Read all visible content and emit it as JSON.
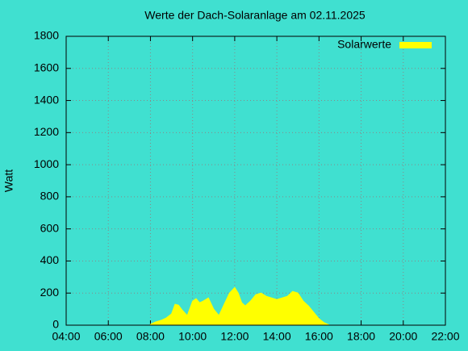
{
  "chart_data": {
    "type": "area",
    "title": "Werte der Dach-Solaranlage am 02.11.2025",
    "ylabel": "Watt",
    "x": [
      "08:00",
      "08:15",
      "08:30",
      "08:45",
      "09:00",
      "09:10",
      "09:20",
      "09:30",
      "09:45",
      "10:00",
      "10:10",
      "10:20",
      "10:30",
      "10:45",
      "11:00",
      "11:15",
      "11:30",
      "11:45",
      "12:00",
      "12:10",
      "12:20",
      "12:30",
      "12:45",
      "13:00",
      "13:15",
      "13:30",
      "13:45",
      "14:00",
      "14:15",
      "14:30",
      "14:45",
      "15:00",
      "15:15",
      "15:30",
      "15:45",
      "16:00",
      "16:15",
      "16:30"
    ],
    "series": [
      {
        "name": "Solarwerte",
        "color": "#ffff00",
        "values": [
          5,
          20,
          30,
          45,
          70,
          130,
          125,
          95,
          60,
          150,
          165,
          140,
          150,
          170,
          100,
          60,
          130,
          200,
          235,
          200,
          140,
          120,
          150,
          190,
          200,
          180,
          170,
          160,
          170,
          180,
          210,
          200,
          150,
          120,
          80,
          40,
          15,
          0
        ]
      }
    ],
    "xlim": [
      "04:00",
      "22:00"
    ],
    "xticks": [
      "04:00",
      "06:00",
      "08:00",
      "10:00",
      "12:00",
      "14:00",
      "16:00",
      "18:00",
      "20:00",
      "22:00"
    ],
    "ylim": [
      0,
      1800
    ],
    "yticks": [
      0,
      200,
      400,
      600,
      800,
      1000,
      1200,
      1400,
      1600,
      1800
    ],
    "grid": true,
    "legend": "top-right"
  }
}
